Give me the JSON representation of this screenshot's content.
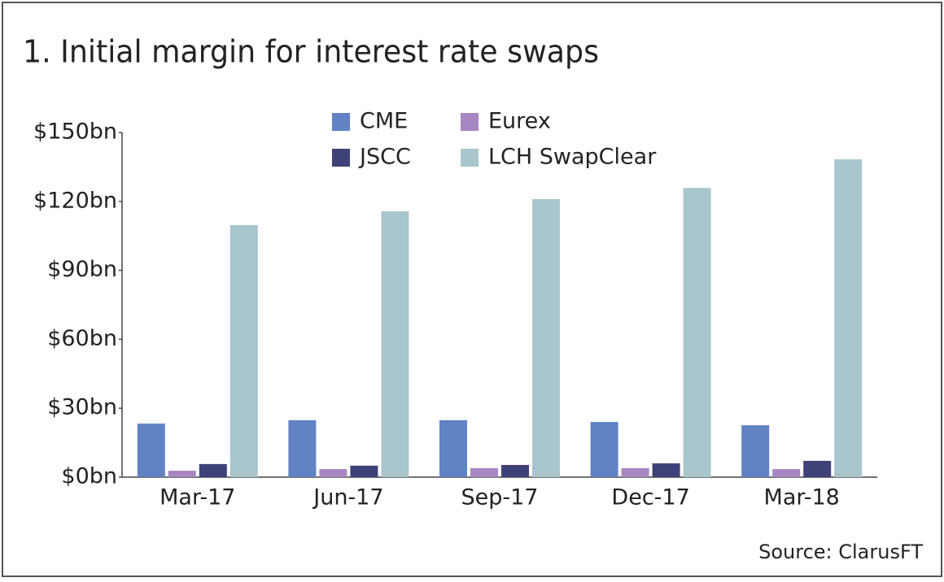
{
  "chart_data": {
    "type": "bar",
    "title": "1. Initial margin for interest rate swaps",
    "source": "Source: ClarusFT",
    "categories": [
      "Mar-17",
      "Jun-17",
      "Sep-17",
      "Dec-17",
      "Mar-18"
    ],
    "series": [
      {
        "name": "CME",
        "color": "#6183c4",
        "values": [
          23.3,
          24.8,
          24.8,
          24.0,
          22.6
        ]
      },
      {
        "name": "Eurex",
        "color": "#a886c1",
        "values": [
          2.8,
          3.5,
          3.9,
          3.9,
          3.5
        ]
      },
      {
        "name": "JSCC",
        "color": "#3f4278",
        "values": [
          5.7,
          5.0,
          5.3,
          6.0,
          7.1
        ]
      },
      {
        "name": "LCH SwapClear",
        "color": "#a9c6cd",
        "values": [
          109.7,
          115.7,
          121.0,
          125.9,
          138.3
        ]
      }
    ],
    "ylim": [
      0,
      150
    ],
    "yticks": [
      {
        "value": 0,
        "label": "$0bn"
      },
      {
        "value": 30,
        "label": "$30bn"
      },
      {
        "value": 60,
        "label": "$60bn"
      },
      {
        "value": 90,
        "label": "$90bn"
      },
      {
        "value": 120,
        "label": "$120bn"
      },
      {
        "value": 150,
        "label": "$150bn"
      }
    ],
    "grid": false
  }
}
